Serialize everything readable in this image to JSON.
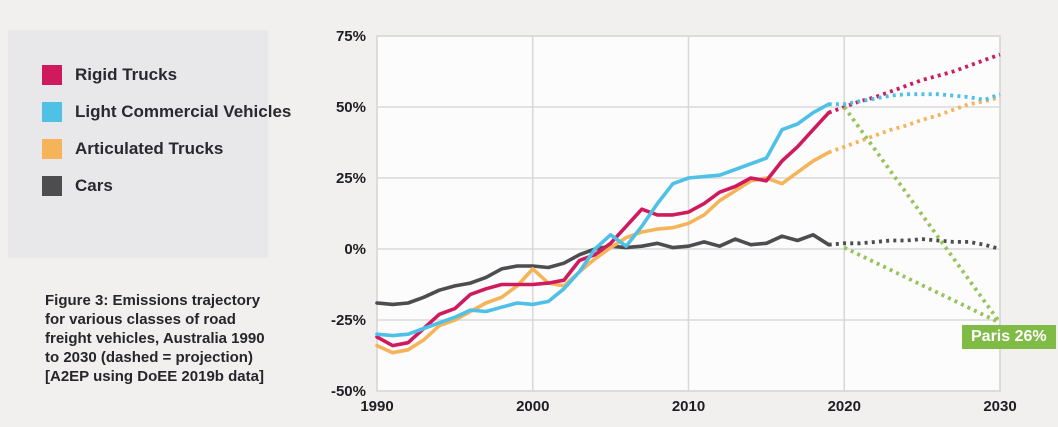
{
  "page": {
    "background": "#f1f0ee",
    "legend_background": "#e8e7ea"
  },
  "legend": {
    "items": [
      {
        "label": "Rigid Trucks",
        "color": "#cf1b5d"
      },
      {
        "label": "Light Commercial Vehicles",
        "color": "#4fc0e6"
      },
      {
        "label": "Articulated Trucks",
        "color": "#f6b45a"
      },
      {
        "label": "Cars",
        "color": "#4d4d50"
      }
    ]
  },
  "caption": {
    "lines": [
      "Figure 3: Emissions trajectory",
      "for various classes of road",
      "freight vehicles, Australia 1990",
      "to 2030 (dashed = projection)",
      "[A2EP using DoEE 2019b data]"
    ]
  },
  "chart_data": {
    "type": "line",
    "title": "",
    "grid": true,
    "plot_background": "#fcfcfc",
    "grid_color": "#d9d9d9",
    "x_axis": {
      "min": 1990,
      "max": 2030,
      "tick_values": [
        1990,
        2000,
        2010,
        2020,
        2030
      ],
      "ticks": [
        "1990",
        "2000",
        "2010",
        "2020",
        "2030"
      ]
    },
    "y_axis": {
      "min": -50,
      "max": 75,
      "tick_values": [
        75,
        50,
        25,
        0,
        -25,
        -50
      ],
      "ticks": [
        "75%",
        "50%",
        "25%",
        "0%",
        "-25%",
        "-50%"
      ]
    },
    "series": [
      {
        "name": "Cars",
        "color": "#4d4d50",
        "solid": {
          "start_year": 1990,
          "values": [
            -19,
            -19.5,
            -19,
            -17,
            -14.5,
            -13,
            -12,
            -10,
            -7,
            -6,
            -6,
            -6.5,
            -5,
            -2,
            0,
            1,
            0.5,
            1,
            2,
            0.5,
            1,
            2.5,
            1,
            3.5,
            1.5,
            2,
            4.5,
            3,
            5,
            1.5
          ]
        },
        "projection": {
          "start_year": 2019,
          "values": [
            1.5,
            2,
            2,
            2.5,
            3,
            3,
            3.5,
            3,
            2.5,
            2.5,
            1.5,
            0
          ]
        }
      },
      {
        "name": "Articulated Trucks",
        "color": "#f6b45a",
        "solid": {
          "start_year": 1990,
          "values": [
            -34,
            -36.5,
            -35.5,
            -32,
            -27,
            -25,
            -22,
            -19,
            -17,
            -13,
            -7,
            -12,
            -13,
            -8,
            -3.5,
            0.5,
            4,
            6,
            7,
            7.5,
            9,
            12,
            17,
            20.5,
            24,
            25,
            23,
            27,
            31,
            34
          ]
        },
        "projection": {
          "start_year": 2019,
          "values": [
            34,
            36,
            38,
            40,
            42,
            43.5,
            45.5,
            47,
            49,
            51,
            52,
            53.5
          ]
        }
      },
      {
        "name": "Rigid Trucks",
        "color": "#cf1b5d",
        "solid": {
          "start_year": 1990,
          "values": [
            -31,
            -34,
            -33,
            -28,
            -23,
            -21,
            -16,
            -14,
            -12.5,
            -12.5,
            -12.5,
            -12,
            -11,
            -4,
            -2,
            2,
            8,
            14,
            12,
            12,
            13,
            16,
            20,
            22,
            25,
            24,
            31,
            36,
            42,
            48
          ]
        },
        "projection": {
          "start_year": 2019,
          "values": [
            48,
            50,
            52,
            53.5,
            55.5,
            57.5,
            59.5,
            61,
            62.5,
            64.5,
            66.5,
            68.5
          ]
        }
      },
      {
        "name": "Light Commercial Vehicles",
        "color": "#4fc0e6",
        "solid": {
          "start_year": 1990,
          "values": [
            -30,
            -30.5,
            -30,
            -28,
            -26,
            -24,
            -21.5,
            -22,
            -20.5,
            -19,
            -19.5,
            -18.5,
            -14,
            -8,
            0,
            5,
            1,
            8,
            16,
            23,
            25,
            25.5,
            26,
            28,
            30,
            32,
            42,
            44,
            48,
            51
          ]
        },
        "projection": {
          "start_year": 2019,
          "values": [
            51,
            51,
            52,
            53,
            54,
            54.5,
            54.5,
            54.5,
            54,
            53.5,
            52.5,
            54.5
          ]
        }
      }
    ],
    "paris_lines": [
      {
        "name": "Paris target path from trucks level",
        "color": "#96c35c",
        "years": [
          2020,
          2030
        ],
        "values": [
          50,
          -26
        ]
      },
      {
        "name": "Paris target path from cars level",
        "color": "#96c35c",
        "years": [
          2020,
          2030
        ],
        "values": [
          0.5,
          -26
        ]
      }
    ],
    "paris_label": {
      "text": "Paris 26%",
      "color": "#80bb45",
      "text_color": "#ffffff"
    }
  }
}
